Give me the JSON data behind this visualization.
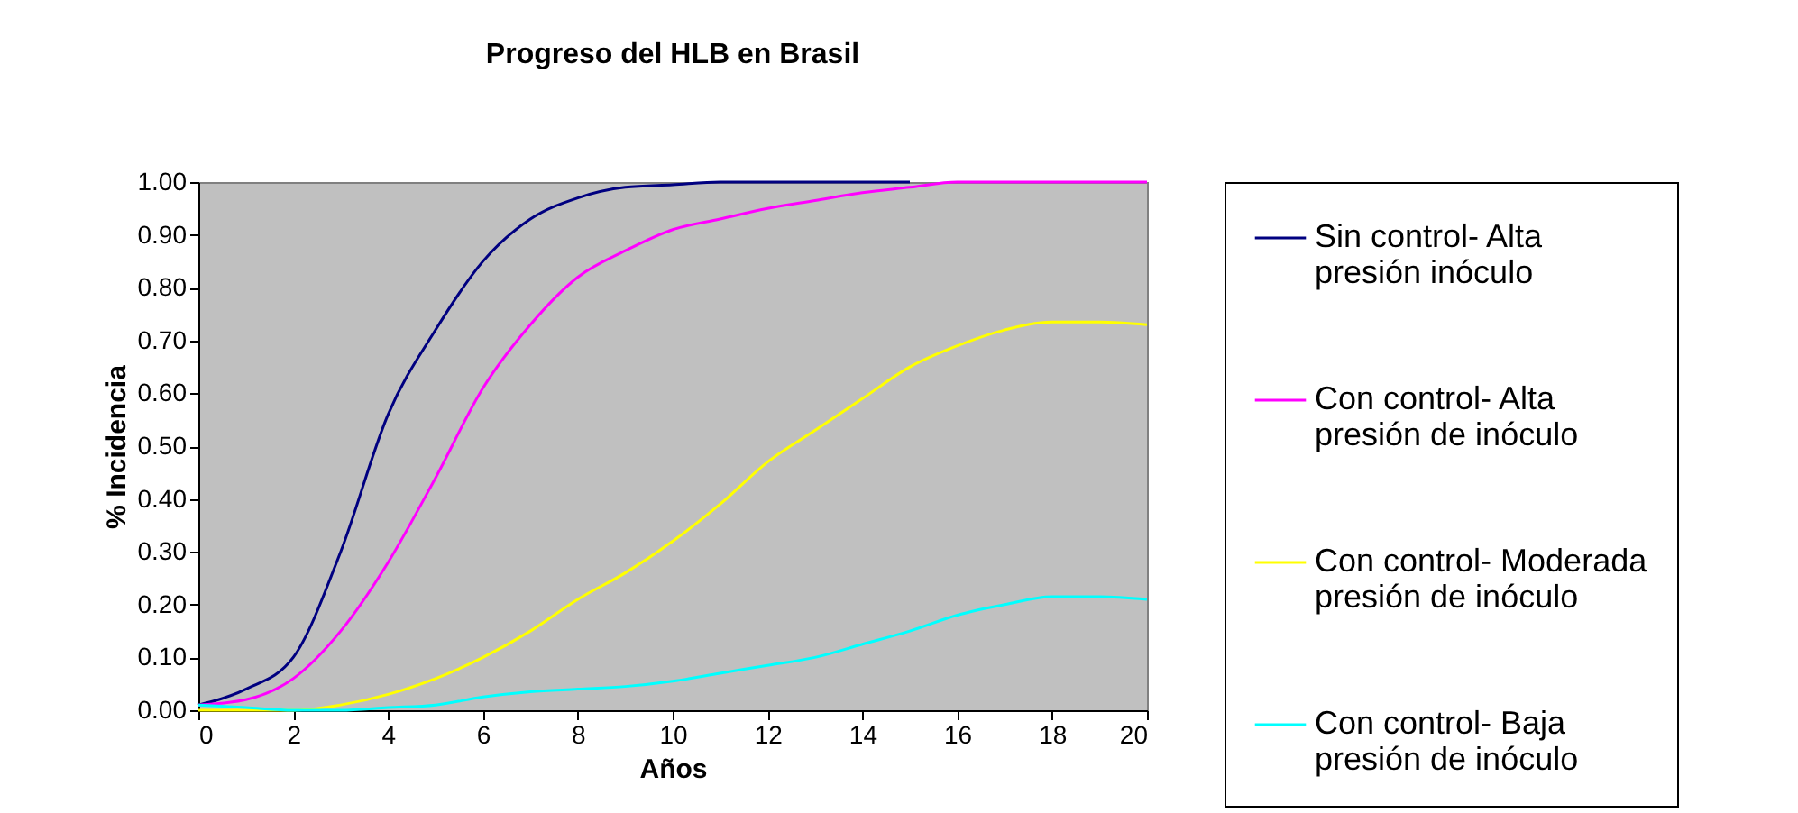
{
  "chart_data": {
    "type": "line",
    "title": "Progreso del HLB en Brasil",
    "xlabel": "Años",
    "ylabel": "% Incidencia",
    "x": [
      0,
      1,
      2,
      3,
      4,
      5,
      6,
      7,
      8,
      9,
      10,
      11,
      12,
      13,
      14,
      15,
      16,
      17,
      18,
      19,
      20
    ],
    "series": [
      {
        "name": "Sin control- Alta\npresión inóculo",
        "color": "#000080",
        "values": [
          0.01,
          0.04,
          0.1,
          0.3,
          0.56,
          0.72,
          0.85,
          0.93,
          0.97,
          0.99,
          0.995,
          1.0,
          1.0,
          1.0,
          1.0,
          1.0,
          null,
          null,
          null,
          null,
          null
        ]
      },
      {
        "name": "Con control- Alta\npresión de inóculo",
        "color": "#ff00ff",
        "values": [
          0.01,
          0.02,
          0.06,
          0.15,
          0.28,
          0.44,
          0.61,
          0.73,
          0.82,
          0.87,
          0.91,
          0.93,
          0.95,
          0.965,
          0.98,
          0.99,
          1.0,
          1.0,
          1.0,
          1.0,
          1.0
        ]
      },
      {
        "name": "Con control- Moderada\npresión de inóculo",
        "color": "#ffff00",
        "values": [
          0.0,
          0.0,
          0.0,
          0.01,
          0.03,
          0.06,
          0.1,
          0.15,
          0.21,
          0.26,
          0.32,
          0.39,
          0.47,
          0.53,
          0.59,
          0.65,
          0.69,
          0.72,
          0.735,
          0.735,
          0.73
        ]
      },
      {
        "name": "Con control- Baja\npresión de inóculo",
        "color": "#00ffff",
        "values": [
          0.01,
          0.005,
          0.0,
          0.0,
          0.005,
          0.01,
          0.025,
          0.035,
          0.04,
          0.045,
          0.055,
          0.07,
          0.085,
          0.1,
          0.125,
          0.15,
          0.18,
          0.2,
          0.215,
          0.215,
          0.21
        ]
      }
    ],
    "xlim": [
      0,
      20
    ],
    "xticks": [
      0,
      2,
      4,
      6,
      8,
      10,
      12,
      14,
      16,
      18,
      20
    ],
    "ylim": [
      0,
      1
    ],
    "yticks": [
      {
        "value": 0,
        "label": "0.00"
      },
      {
        "value": 0.1,
        "label": "0.10"
      },
      {
        "value": 0.2,
        "label": "0.20"
      },
      {
        "value": 0.3,
        "label": "0.30"
      },
      {
        "value": 0.4,
        "label": "0.40"
      },
      {
        "value": 0.5,
        "label": "0.50"
      },
      {
        "value": 0.6,
        "label": "0.60"
      },
      {
        "value": 0.7,
        "label": "0.70"
      },
      {
        "value": 0.8,
        "label": "0.80"
      },
      {
        "value": 0.9,
        "label": "0.90"
      },
      {
        "value": 1,
        "label": "1.00"
      }
    ],
    "grid": false,
    "legend": "right",
    "marker": "none",
    "line_style": "solid"
  }
}
